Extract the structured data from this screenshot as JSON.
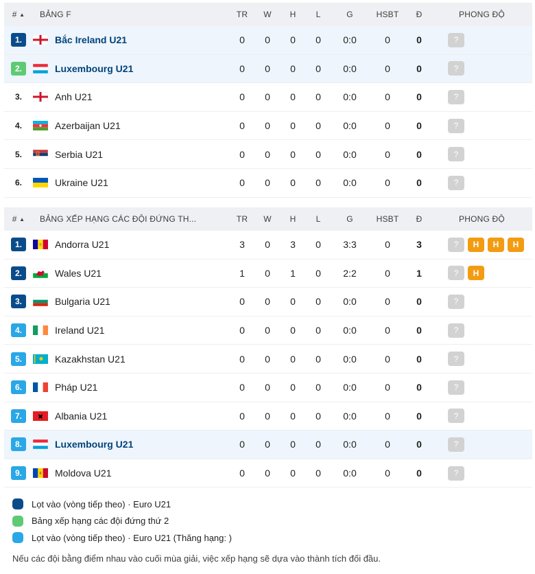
{
  "colors": {
    "advance": "#0a4c8a",
    "second_place": "#5fca74",
    "advance_promoted": "#2aa7e6"
  },
  "tables": [
    {
      "headers": {
        "rank": "#",
        "sort": "▲",
        "title": "BẢNG F",
        "tr": "TR",
        "w": "W",
        "h": "H",
        "l": "L",
        "g": "G",
        "hsbt": "HSBT",
        "d": "Đ",
        "form": "PHONG ĐỘ"
      },
      "rows": [
        {
          "rank": "1.",
          "badge": "advance",
          "flag": "northern-ireland",
          "team": "Bắc Ireland U21",
          "highlight": true,
          "tr": "0",
          "w": "0",
          "h": "0",
          "l": "0",
          "g": "0:0",
          "hsbt": "0",
          "d": "0",
          "form": [
            "?"
          ]
        },
        {
          "rank": "2.",
          "badge": "second_place",
          "flag": "luxembourg",
          "team": "Luxembourg U21",
          "highlight": true,
          "tr": "0",
          "w": "0",
          "h": "0",
          "l": "0",
          "g": "0:0",
          "hsbt": "0",
          "d": "0",
          "form": [
            "?"
          ]
        },
        {
          "rank": "3.",
          "badge": "none",
          "flag": "england",
          "team": "Anh U21",
          "highlight": false,
          "tr": "0",
          "w": "0",
          "h": "0",
          "l": "0",
          "g": "0:0",
          "hsbt": "0",
          "d": "0",
          "form": [
            "?"
          ]
        },
        {
          "rank": "4.",
          "badge": "none",
          "flag": "azerbaijan",
          "team": "Azerbaijan U21",
          "highlight": false,
          "tr": "0",
          "w": "0",
          "h": "0",
          "l": "0",
          "g": "0:0",
          "hsbt": "0",
          "d": "0",
          "form": [
            "?"
          ]
        },
        {
          "rank": "5.",
          "badge": "none",
          "flag": "serbia",
          "team": "Serbia U21",
          "highlight": false,
          "tr": "0",
          "w": "0",
          "h": "0",
          "l": "0",
          "g": "0:0",
          "hsbt": "0",
          "d": "0",
          "form": [
            "?"
          ]
        },
        {
          "rank": "6.",
          "badge": "none",
          "flag": "ukraine",
          "team": "Ukraine U21",
          "highlight": false,
          "tr": "0",
          "w": "0",
          "h": "0",
          "l": "0",
          "g": "0:0",
          "hsbt": "0",
          "d": "0",
          "form": [
            "?"
          ]
        }
      ]
    },
    {
      "headers": {
        "rank": "#",
        "sort": "▲",
        "title": "BẢNG XẾP HẠNG CÁC ĐỘI ĐỨNG TH...",
        "tr": "TR",
        "w": "W",
        "h": "H",
        "l": "L",
        "g": "G",
        "hsbt": "HSBT",
        "d": "Đ",
        "form": "PHONG ĐỘ"
      },
      "rows": [
        {
          "rank": "1.",
          "badge": "advance",
          "flag": "andorra",
          "team": "Andorra U21",
          "highlight": false,
          "tr": "3",
          "w": "0",
          "h": "3",
          "l": "0",
          "g": "3:3",
          "hsbt": "0",
          "d": "3",
          "form": [
            "?",
            "H",
            "H",
            "H"
          ]
        },
        {
          "rank": "2.",
          "badge": "advance",
          "flag": "wales",
          "team": "Wales U21",
          "highlight": false,
          "tr": "1",
          "w": "0",
          "h": "1",
          "l": "0",
          "g": "2:2",
          "hsbt": "0",
          "d": "1",
          "form": [
            "?",
            "H"
          ]
        },
        {
          "rank": "3.",
          "badge": "advance",
          "flag": "bulgaria",
          "team": "Bulgaria U21",
          "highlight": false,
          "tr": "0",
          "w": "0",
          "h": "0",
          "l": "0",
          "g": "0:0",
          "hsbt": "0",
          "d": "0",
          "form": [
            "?"
          ]
        },
        {
          "rank": "4.",
          "badge": "advance_promoted",
          "flag": "ireland",
          "team": "Ireland U21",
          "highlight": false,
          "tr": "0",
          "w": "0",
          "h": "0",
          "l": "0",
          "g": "0:0",
          "hsbt": "0",
          "d": "0",
          "form": [
            "?"
          ]
        },
        {
          "rank": "5.",
          "badge": "advance_promoted",
          "flag": "kazakhstan",
          "team": "Kazakhstan U21",
          "highlight": false,
          "tr": "0",
          "w": "0",
          "h": "0",
          "l": "0",
          "g": "0:0",
          "hsbt": "0",
          "d": "0",
          "form": [
            "?"
          ]
        },
        {
          "rank": "6.",
          "badge": "advance_promoted",
          "flag": "france",
          "team": "Pháp U21",
          "highlight": false,
          "tr": "0",
          "w": "0",
          "h": "0",
          "l": "0",
          "g": "0:0",
          "hsbt": "0",
          "d": "0",
          "form": [
            "?"
          ]
        },
        {
          "rank": "7.",
          "badge": "advance_promoted",
          "flag": "albania",
          "team": "Albania U21",
          "highlight": false,
          "tr": "0",
          "w": "0",
          "h": "0",
          "l": "0",
          "g": "0:0",
          "hsbt": "0",
          "d": "0",
          "form": [
            "?"
          ]
        },
        {
          "rank": "8.",
          "badge": "advance_promoted",
          "flag": "luxembourg",
          "team": "Luxembourg U21",
          "highlight": true,
          "tr": "0",
          "w": "0",
          "h": "0",
          "l": "0",
          "g": "0:0",
          "hsbt": "0",
          "d": "0",
          "form": [
            "?"
          ]
        },
        {
          "rank": "9.",
          "badge": "advance_promoted",
          "flag": "moldova",
          "team": "Moldova U21",
          "highlight": false,
          "tr": "0",
          "w": "0",
          "h": "0",
          "l": "0",
          "g": "0:0",
          "hsbt": "0",
          "d": "0",
          "form": [
            "?"
          ]
        }
      ]
    }
  ],
  "legend": [
    {
      "color": "advance",
      "label": "Lọt vào (vòng tiếp theo) · Euro U21"
    },
    {
      "color": "second_place",
      "label": "Bảng xếp hạng các đội đứng thứ 2"
    },
    {
      "color": "advance_promoted",
      "label": "Lọt vào (vòng tiếp theo) · Euro U21 (Thăng hạng: )"
    }
  ],
  "footnote": "Nếu các đội bằng điểm nhau vào cuối mùa giải, việc xếp hạng sẽ dựa vào thành tích đối đầu."
}
